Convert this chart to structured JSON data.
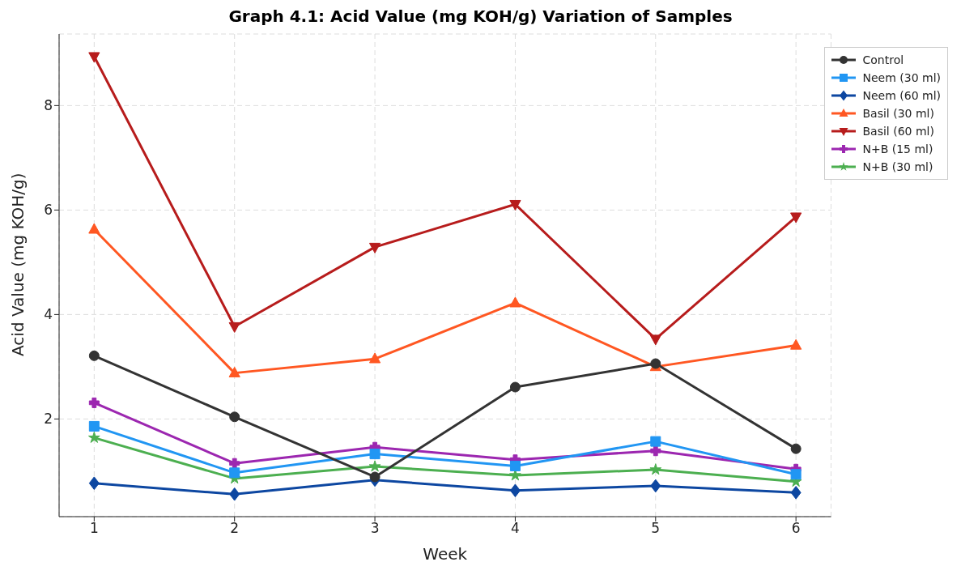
{
  "chart_data": {
    "type": "line",
    "title": "Graph 4.1: Acid Value (mg KOH/g) Variation of Samples",
    "xlabel": "Week",
    "ylabel": "Acid Value (mg KOH/g)",
    "x": [
      1,
      2,
      3,
      4,
      5,
      6
    ],
    "xlim": [
      0.75,
      6.25
    ],
    "xticks": [
      1,
      2,
      3,
      4,
      5,
      6
    ],
    "ylim": [
      0.13,
      9.37
    ],
    "yticks": [
      2,
      4,
      6,
      8
    ],
    "grid": true,
    "legend": "top right",
    "line_style": "solid",
    "series": [
      {
        "name": "Control",
        "color": "#333333",
        "marker": "circle",
        "values": [
          3.21,
          2.04,
          0.89,
          2.61,
          3.06,
          1.43
        ]
      },
      {
        "name": "Neem (30 ml)",
        "color": "#2196f3",
        "marker": "square",
        "values": [
          1.86,
          0.97,
          1.33,
          1.1,
          1.57,
          0.94
        ]
      },
      {
        "name": "Neem (60 ml)",
        "color": "#0d47a1",
        "marker": "diamond",
        "values": [
          0.77,
          0.56,
          0.83,
          0.63,
          0.72,
          0.59
        ]
      },
      {
        "name": "Basil (30 ml)",
        "color": "#ff5722",
        "marker": "triangle",
        "values": [
          5.63,
          2.88,
          3.15,
          4.22,
          3.0,
          3.41
        ]
      },
      {
        "name": "Basil (60 ml)",
        "color": "#b71c1c",
        "marker": "triangle_down",
        "values": [
          8.94,
          3.77,
          5.29,
          6.11,
          3.53,
          5.87
        ]
      },
      {
        "name": "N+B (15 ml)",
        "color": "#9c27b0",
        "marker": "cross",
        "values": [
          2.31,
          1.15,
          1.46,
          1.22,
          1.39,
          1.04
        ]
      },
      {
        "name": "N+B (30 ml)",
        "color": "#4caf50",
        "marker": "star",
        "values": [
          1.64,
          0.86,
          1.09,
          0.92,
          1.03,
          0.8
        ]
      }
    ]
  }
}
